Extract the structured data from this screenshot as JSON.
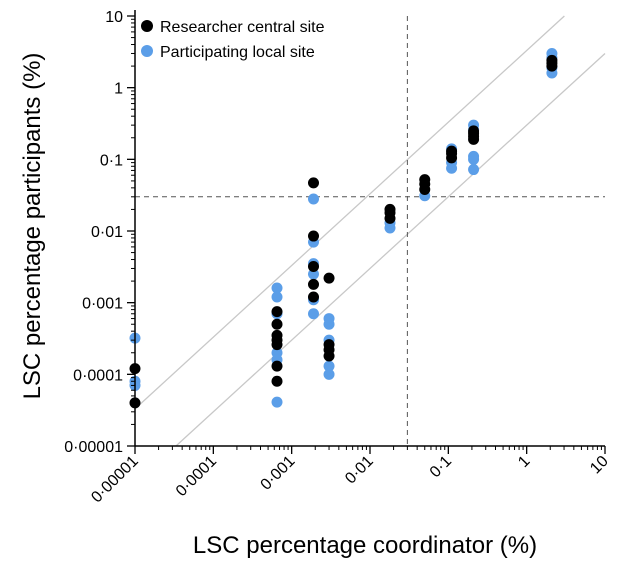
{
  "chart_data": {
    "type": "scatter",
    "title": "",
    "xlabel": "LSC percentage coordinator (%)",
    "ylabel": "LSC percentage participants (%)",
    "x_scale": "log",
    "y_scale": "log",
    "xlim": [
      1e-05,
      10
    ],
    "ylim": [
      1e-05,
      10
    ],
    "x_tick_values": [
      1e-05,
      0.0001,
      0.001,
      0.01,
      0.1,
      1,
      10
    ],
    "x_tick_labels": [
      "0·00001",
      "0·0001",
      "0·001",
      "0·01",
      "0·1",
      "1",
      "10"
    ],
    "y_tick_values": [
      1e-05,
      0.0001,
      0.001,
      0.01,
      0.1,
      1,
      10
    ],
    "y_tick_labels": [
      "0·00001",
      "0·0001",
      "0·001",
      "0·01",
      "0·1",
      "1",
      "10"
    ],
    "grid": false,
    "legend_position": "top-left",
    "reference_lines": {
      "vertical_dashed_x": 0.03,
      "horizontal_dashed_y": 0.03,
      "diagonal_upper_offset_factor": 3.3,
      "diagonal_lower_offset_factor": 0.3
    },
    "series": [
      {
        "name": "Researcher central site",
        "color": "#000000",
        "points": [
          [
            1e-05,
            0.00012
          ],
          [
            1e-05,
            4e-05
          ],
          [
            0.003,
            0.0022
          ],
          [
            0.003,
            0.00026
          ],
          [
            0.003,
            0.00022
          ],
          [
            0.003,
            0.00018
          ],
          [
            0.00065,
            0.00075
          ],
          [
            0.00065,
            0.0005
          ],
          [
            0.00065,
            0.00035
          ],
          [
            0.00065,
            0.0003
          ],
          [
            0.00065,
            0.00026
          ],
          [
            0.00065,
            0.00013
          ],
          [
            0.00065,
            8e-05
          ],
          [
            0.0019,
            0.047
          ],
          [
            0.0019,
            0.0085
          ],
          [
            0.0019,
            0.0032
          ],
          [
            0.0019,
            0.0018
          ],
          [
            0.0019,
            0.0012
          ],
          [
            0.018,
            0.02
          ],
          [
            0.018,
            0.018
          ],
          [
            0.018,
            0.015
          ],
          [
            0.05,
            0.052
          ],
          [
            0.05,
            0.045
          ],
          [
            0.05,
            0.038
          ],
          [
            0.11,
            0.13
          ],
          [
            0.11,
            0.12
          ],
          [
            0.11,
            0.105
          ],
          [
            0.21,
            0.25
          ],
          [
            0.21,
            0.23
          ],
          [
            0.21,
            0.21
          ],
          [
            0.21,
            0.19
          ],
          [
            2.1,
            2.4
          ],
          [
            2.1,
            2.2
          ],
          [
            2.1,
            2.0
          ]
        ]
      },
      {
        "name": "Participating local site",
        "color": "#5b9ee8",
        "points": [
          [
            1e-05,
            0.00032
          ],
          [
            1e-05,
            8e-05
          ],
          [
            1e-05,
            7e-05
          ],
          [
            0.003,
            0.0006
          ],
          [
            0.003,
            0.0005
          ],
          [
            0.003,
            0.0003
          ],
          [
            0.003,
            0.00013
          ],
          [
            0.003,
            0.0001
          ],
          [
            0.00065,
            0.0016
          ],
          [
            0.00065,
            0.0012
          ],
          [
            0.00065,
            0.0007
          ],
          [
            0.00065,
            0.0002
          ],
          [
            0.00065,
            0.00016
          ],
          [
            0.00065,
            4.1e-05
          ],
          [
            0.0019,
            0.028
          ],
          [
            0.0019,
            0.007
          ],
          [
            0.0019,
            0.0035
          ],
          [
            0.0019,
            0.0025
          ],
          [
            0.0019,
            0.0011
          ],
          [
            0.0019,
            0.0007
          ],
          [
            0.018,
            0.013
          ],
          [
            0.018,
            0.011
          ],
          [
            0.05,
            0.031
          ],
          [
            0.11,
            0.14
          ],
          [
            0.11,
            0.09
          ],
          [
            0.11,
            0.075
          ],
          [
            0.21,
            0.3
          ],
          [
            0.21,
            0.26
          ],
          [
            0.21,
            0.11
          ],
          [
            0.21,
            0.1
          ],
          [
            0.21,
            0.072
          ],
          [
            2.1,
            3.0
          ],
          [
            2.1,
            2.6
          ],
          [
            2.1,
            1.9
          ],
          [
            2.1,
            1.6
          ]
        ]
      }
    ]
  }
}
